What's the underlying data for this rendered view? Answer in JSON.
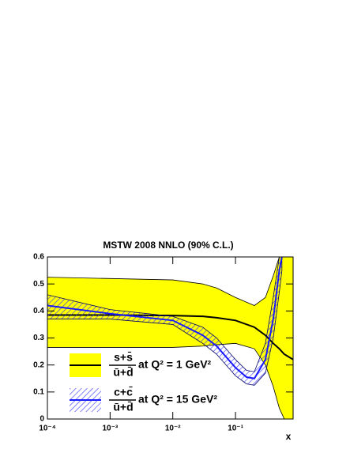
{
  "chart_data": {
    "type": "band-line",
    "title": "MSTW 2008 NNLO (90% C.L.)",
    "x_label": "x",
    "x_log": true,
    "xlim": [
      0.0001,
      0.83
    ],
    "xticks": [
      {
        "value": 0.0001,
        "label": "10⁻⁴"
      },
      {
        "value": 0.001,
        "label": "10⁻³"
      },
      {
        "value": 0.01,
        "label": "10⁻²"
      },
      {
        "value": 0.1,
        "label": "10⁻¹"
      }
    ],
    "ylim": [
      0,
      0.6
    ],
    "yticks": [
      0,
      0.1,
      0.2,
      0.3,
      0.4,
      0.5,
      0.6
    ],
    "legend": "lower left",
    "series": [
      {
        "name": "at Q² = 1 GeV²",
        "fraction": [
          "s+s̄",
          "ū+d̄"
        ],
        "color": "#000000",
        "band_fill": "#ffff00",
        "x": [
          0.0001,
          0.001,
          0.01,
          0.03,
          0.05,
          0.1,
          0.2,
          0.3,
          0.4,
          0.5,
          0.6,
          0.83
        ],
        "values": [
          0.385,
          0.385,
          0.383,
          0.38,
          0.375,
          0.365,
          0.34,
          0.31,
          0.28,
          0.26,
          0.24,
          0.22
        ],
        "upper": [
          0.525,
          0.52,
          0.515,
          0.5,
          0.485,
          0.45,
          0.42,
          0.45,
          0.53,
          0.6,
          0.6,
          0.6
        ],
        "lower": [
          0.265,
          0.265,
          0.265,
          0.27,
          0.275,
          0.28,
          0.26,
          0.2,
          0.12,
          0.04,
          0,
          0
        ]
      },
      {
        "name": "at Q² = 15 GeV²",
        "fraction": [
          "c+c̄",
          "ū+d̄"
        ],
        "color": "#1a1aff",
        "band_fill": "hatch",
        "x": [
          0.0001,
          0.001,
          0.01,
          0.03,
          0.05,
          0.1,
          0.15,
          0.2,
          0.3,
          0.4,
          0.5,
          0.55
        ],
        "values": [
          0.42,
          0.39,
          0.365,
          0.31,
          0.27,
          0.19,
          0.155,
          0.15,
          0.22,
          0.37,
          0.55,
          0.6
        ],
        "upper": [
          0.46,
          0.405,
          0.38,
          0.34,
          0.3,
          0.22,
          0.18,
          0.175,
          0.28,
          0.45,
          0.6,
          0.6
        ],
        "lower": [
          0.37,
          0.37,
          0.35,
          0.28,
          0.24,
          0.16,
          0.13,
          0.125,
          0.17,
          0.3,
          0.47,
          0.55
        ]
      }
    ]
  }
}
